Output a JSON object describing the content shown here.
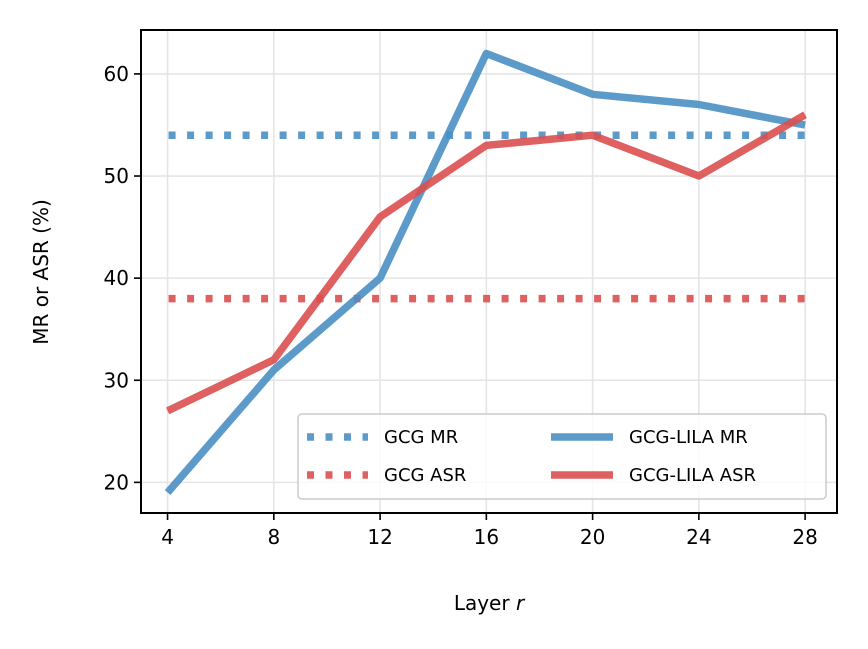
{
  "chart_data": {
    "type": "line",
    "title": "",
    "xlabel": "Layer",
    "xlabel_var": "r",
    "ylabel": "MR or ASR (%)",
    "xlim": [
      3,
      29.2
    ],
    "ylim": [
      17,
      64.3
    ],
    "xticks": [
      4,
      8,
      12,
      16,
      20,
      24,
      28
    ],
    "yticks": [
      20,
      30,
      40,
      50,
      60
    ],
    "grid": true,
    "legend_position": "lower right",
    "series": [
      {
        "name": "GCG MR",
        "style": "dotted",
        "color": "#4a8fc4",
        "x": [
          4,
          28
        ],
        "y": [
          54,
          54
        ]
      },
      {
        "name": "GCG ASR",
        "style": "dotted",
        "color": "#dc4f4f",
        "x": [
          4,
          28
        ],
        "y": [
          38,
          38
        ]
      },
      {
        "name": "GCG-LILA MR",
        "style": "solid",
        "color": "#4a8fc4",
        "x": [
          4,
          8,
          12,
          16,
          20,
          24,
          28
        ],
        "y": [
          19,
          31,
          40,
          62,
          58,
          57,
          55
        ]
      },
      {
        "name": "GCG-LILA ASR",
        "style": "solid",
        "color": "#dc4f4f",
        "x": [
          4,
          8,
          12,
          16,
          20,
          24,
          28
        ],
        "y": [
          27,
          32,
          46,
          53,
          54,
          50,
          56
        ]
      }
    ]
  }
}
